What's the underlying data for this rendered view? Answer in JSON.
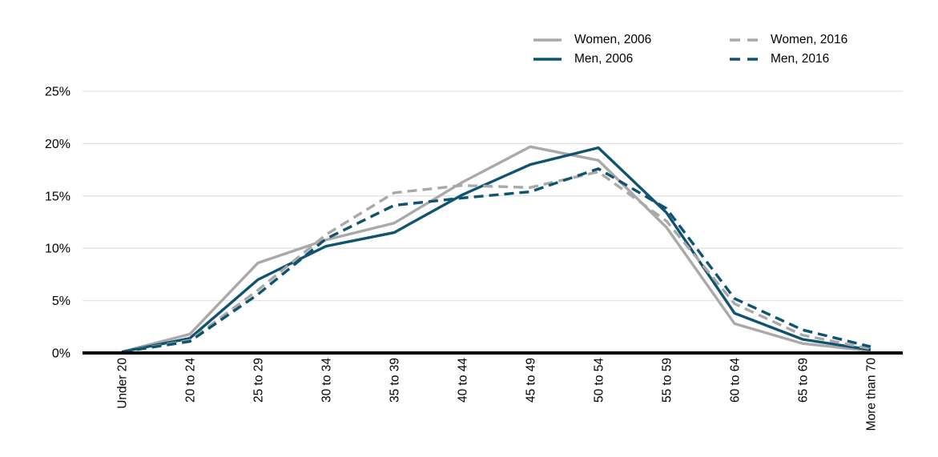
{
  "colors": {
    "women_series": "#a9a9a9",
    "men_series": "#0e5470",
    "gridline": "#e3e3e3",
    "axis_line": "#000000",
    "text": "#000000",
    "background": "#ffffff"
  },
  "legend": {
    "position": "top-right",
    "order_on_screen": [
      "Women, 2006",
      "Women, 2016",
      "Men, 2006",
      "Men, 2016"
    ]
  },
  "chart_data": {
    "type": "line",
    "title": "",
    "xlabel": "",
    "ylabel": "",
    "categories": [
      "Under 20",
      "20 to 24",
      "25 to 29",
      "30 to 34",
      "35 to 39",
      "40 to 44",
      "45 to 49",
      "50 to 54",
      "55 to 59",
      "60 to 64",
      "65 to 69",
      "More than 70"
    ],
    "yticks": [
      "0%",
      "5%",
      "10%",
      "15%",
      "20%",
      "25%"
    ],
    "ylim": [
      0,
      25
    ],
    "grid": true,
    "series": [
      {
        "name": "Women, 2006",
        "style": "solid",
        "color": "#a9a9a9",
        "values": [
          0.1,
          1.8,
          8.6,
          10.8,
          12.4,
          16.3,
          19.7,
          18.4,
          12.0,
          2.8,
          0.9,
          0.2
        ]
      },
      {
        "name": "Men, 2006",
        "style": "solid",
        "color": "#0e5470",
        "values": [
          0.1,
          1.4,
          7.0,
          10.2,
          11.5,
          15.1,
          18.0,
          19.6,
          13.4,
          3.8,
          1.3,
          0.3
        ]
      },
      {
        "name": "Women, 2016",
        "style": "dashed",
        "color": "#a9a9a9",
        "values": [
          0.1,
          1.2,
          6.0,
          11.3,
          15.3,
          16.0,
          15.8,
          17.3,
          12.6,
          4.7,
          1.7,
          0.4
        ]
      },
      {
        "name": "Men, 2016",
        "style": "dashed",
        "color": "#0e5470",
        "values": [
          0.1,
          1.1,
          5.6,
          10.9,
          14.1,
          14.8,
          15.4,
          17.6,
          13.8,
          5.2,
          2.2,
          0.6
        ]
      }
    ]
  }
}
